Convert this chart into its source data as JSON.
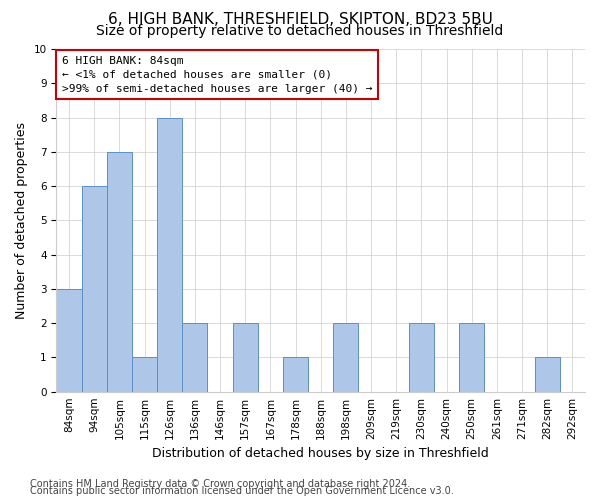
{
  "title": "6, HIGH BANK, THRESHFIELD, SKIPTON, BD23 5BU",
  "subtitle": "Size of property relative to detached houses in Threshfield",
  "xlabel": "Distribution of detached houses by size in Threshfield",
  "ylabel": "Number of detached properties",
  "categories": [
    "84sqm",
    "94sqm",
    "105sqm",
    "115sqm",
    "126sqm",
    "136sqm",
    "146sqm",
    "157sqm",
    "167sqm",
    "178sqm",
    "188sqm",
    "198sqm",
    "209sqm",
    "219sqm",
    "230sqm",
    "240sqm",
    "250sqm",
    "261sqm",
    "271sqm",
    "282sqm",
    "292sqm"
  ],
  "values": [
    3,
    6,
    7,
    1,
    8,
    2,
    0,
    2,
    0,
    1,
    0,
    2,
    0,
    0,
    2,
    0,
    2,
    0,
    0,
    1,
    0
  ],
  "bar_color": "#aec6e8",
  "bar_edge_color": "#5b8fc9",
  "background_color": "#ffffff",
  "grid_color": "#cccccc",
  "annotation_box_color": "#cc0000",
  "annotation_text": "6 HIGH BANK: 84sqm\n← <1% of detached houses are smaller (0)\n>99% of semi-detached houses are larger (40) →",
  "ylim": [
    0,
    10
  ],
  "yticks": [
    0,
    1,
    2,
    3,
    4,
    5,
    6,
    7,
    8,
    9,
    10
  ],
  "footer_line1": "Contains HM Land Registry data © Crown copyright and database right 2024.",
  "footer_line2": "Contains public sector information licensed under the Open Government Licence v3.0.",
  "title_fontsize": 11,
  "subtitle_fontsize": 10,
  "ylabel_fontsize": 9,
  "xlabel_fontsize": 9,
  "tick_fontsize": 7.5,
  "annotation_fontsize": 8,
  "footer_fontsize": 7
}
